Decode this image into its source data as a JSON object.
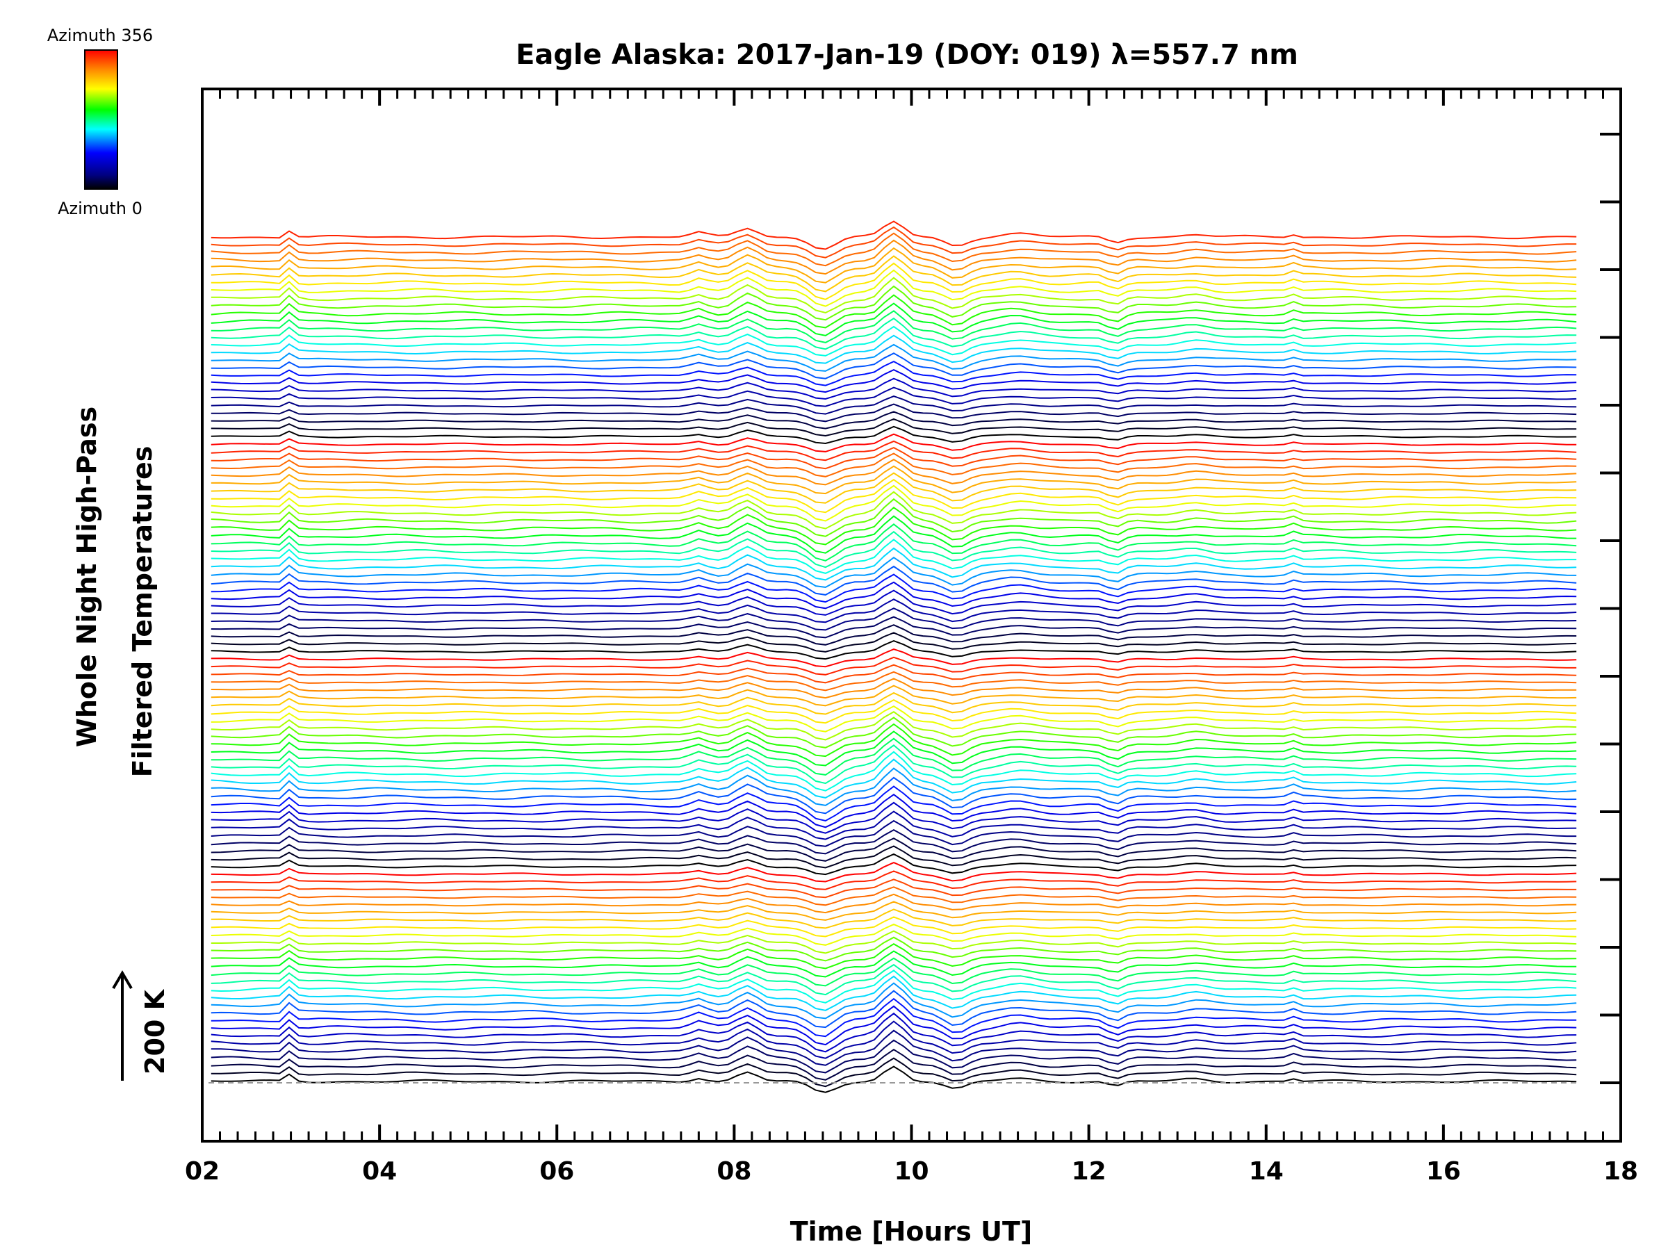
{
  "chart_data": {
    "type": "line",
    "title": "Eagle Alaska: 2017-Jan-19 (DOY: 019) λ=557.7 nm",
    "xlabel": "Time [Hours UT]",
    "ylabel_line1": "Whole Night High-Pass",
    "ylabel_line2": "Filtered Temperatures",
    "scale_label": "200 K",
    "xlim": [
      2,
      18
    ],
    "xticks": [
      "02",
      "04",
      "06",
      "08",
      "10",
      "12",
      "14",
      "16",
      "18"
    ],
    "x_range_data": [
      2.1,
      17.5
    ],
    "colorbar": {
      "top_label": "Azimuth 356",
      "bottom_label": "Azimuth 0",
      "colors": [
        "#ff0000",
        "#ff8800",
        "#ffff00",
        "#00ff00",
        "#00ffff",
        "#0000ff",
        "#000080",
        "#000000"
      ]
    },
    "series_count": 111,
    "azimuth_range": [
      0,
      356
    ],
    "events": [
      {
        "t": 3.0,
        "amp": 1.0,
        "w": 0.06
      },
      {
        "t": 7.6,
        "amp": 0.55,
        "w": 0.12
      },
      {
        "t": 8.15,
        "amp": 1.2,
        "w": 0.16
      },
      {
        "t": 9.0,
        "amp": -1.5,
        "w": 0.2
      },
      {
        "t": 9.8,
        "amp": 2.0,
        "w": 0.16
      },
      {
        "t": 10.5,
        "amp": -1.1,
        "w": 0.18
      },
      {
        "t": 11.2,
        "amp": 0.45,
        "w": 0.25
      },
      {
        "t": 12.3,
        "amp": -0.7,
        "w": 0.12
      },
      {
        "t": 13.2,
        "amp": 0.35,
        "w": 0.2
      },
      {
        "t": 14.3,
        "amp": 0.35,
        "w": 0.06
      }
    ]
  }
}
